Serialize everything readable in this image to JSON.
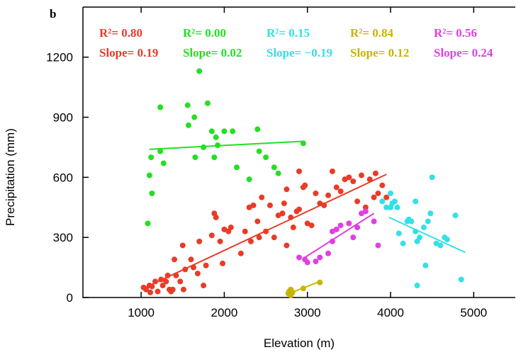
{
  "chart_data": {
    "type": "scatter",
    "panel_label": "b",
    "xlabel": "Elevation (m)",
    "ylabel": "Precipitation (mm)",
    "xlim": [
      300,
      5500
    ],
    "ylim": [
      0,
      1450
    ],
    "xticks": [
      1000,
      2000,
      3000,
      4000,
      5000
    ],
    "yticks": [
      0,
      300,
      600,
      900,
      1200
    ],
    "series": [
      {
        "color": "#e83c28",
        "annotation": [
          "R²= 0.80",
          "Slope= 0.19"
        ],
        "x": [
          1030,
          1060,
          1100,
          1110,
          1130,
          1170,
          1200,
          1240,
          1260,
          1300,
          1320,
          1340,
          1360,
          1380,
          1400,
          1420,
          1470,
          1500,
          1510,
          1530,
          1600,
          1630,
          1680,
          1700,
          1750,
          1780,
          1850,
          1880,
          1900,
          1950,
          1980,
          2000,
          2050,
          2080,
          2200,
          2250,
          2300,
          2320,
          2350,
          2400,
          2420,
          2450,
          2500,
          2550,
          2600,
          2650,
          2700,
          2720,
          2750,
          2750,
          2800,
          2830,
          2870,
          2900,
          2950,
          2970,
          3000,
          3050,
          3100,
          3150,
          3200,
          3250,
          3300,
          3350,
          3400,
          3450,
          3500,
          3550,
          3600,
          3650,
          3700,
          3750,
          3800,
          3850,
          3900,
          3950,
          3820,
          2900
        ],
        "values": [
          50,
          40,
          60,
          25,
          55,
          80,
          30,
          90,
          60,
          80,
          110,
          40,
          30,
          40,
          190,
          110,
          80,
          260,
          40,
          140,
          190,
          150,
          120,
          280,
          60,
          160,
          310,
          420,
          400,
          280,
          170,
          340,
          330,
          350,
          220,
          330,
          450,
          280,
          460,
          380,
          300,
          500,
          330,
          460,
          300,
          410,
          420,
          470,
          540,
          260,
          400,
          350,
          430,
          440,
          550,
          560,
          370,
          360,
          520,
          470,
          460,
          510,
          630,
          550,
          530,
          590,
          600,
          580,
          480,
          610,
          450,
          590,
          500,
          520,
          560,
          500,
          620,
          630
        ],
        "fit": {
          "x": [
            1050,
            3950
          ],
          "y": [
            50,
            615
          ]
        }
      },
      {
        "color": "#22e022",
        "annotation": [
          "R²= 0.00",
          "Slope= 0.02"
        ],
        "x": [
          1080,
          1100,
          1120,
          1130,
          1230,
          1230,
          1270,
          1560,
          1570,
          1640,
          1650,
          1700,
          1750,
          1800,
          1850,
          1880,
          1900,
          1920,
          2000,
          2100,
          2150,
          2300,
          2400,
          2420,
          2500,
          2600,
          2650,
          2950
        ],
        "values": [
          370,
          610,
          700,
          520,
          950,
          730,
          670,
          960,
          860,
          900,
          700,
          1130,
          750,
          970,
          830,
          700,
          800,
          760,
          830,
          830,
          650,
          590,
          840,
          730,
          700,
          650,
          620,
          770
        ],
        "fit": {
          "x": [
            1100,
            2950
          ],
          "y": [
            740,
            780
          ]
        }
      },
      {
        "color": "#33e0e8",
        "annotation": [
          "R²= 0.15",
          "Slope= −0.19"
        ],
        "x": [
          3950,
          4000,
          4020,
          4050,
          4080,
          4100,
          4150,
          4200,
          4220,
          4250,
          4300,
          4300,
          4320,
          4350,
          4400,
          4450,
          4480,
          4500,
          4550,
          4600,
          4650,
          4680,
          4780,
          4850,
          4320,
          4420,
          3900,
          4000
        ],
        "values": [
          450,
          520,
          470,
          480,
          450,
          320,
          270,
          380,
          390,
          380,
          480,
          330,
          280,
          300,
          350,
          380,
          420,
          600,
          270,
          260,
          300,
          290,
          410,
          90,
          60,
          160,
          480,
          450
        ],
        "fit": {
          "x": [
            3980,
            4900
          ],
          "y": [
            400,
            225
          ]
        }
      },
      {
        "color": "#c8b400",
        "annotation": [
          "R²= 0.84",
          "Slope= 0.12"
        ],
        "x": [
          2770,
          2780,
          2800,
          2800,
          2820,
          2950,
          3150,
          2790
        ],
        "values": [
          20,
          30,
          10,
          40,
          25,
          45,
          75,
          15
        ],
        "fit": {
          "x": [
            2780,
            3150
          ],
          "y": [
            20,
            80
          ]
        }
      },
      {
        "color": "#e040e0",
        "annotation": [
          "R²= 0.56",
          "Slope= 0.24"
        ],
        "x": [
          2970,
          3000,
          3100,
          3150,
          3250,
          3300,
          3350,
          3400,
          3500,
          3600,
          3650,
          3700,
          3800,
          3850,
          3550,
          3300,
          2900
        ],
        "values": [
          190,
          175,
          180,
          200,
          220,
          330,
          340,
          360,
          370,
          350,
          420,
          430,
          380,
          260,
          300,
          280,
          200
        ],
        "fit": {
          "x": [
            2950,
            3800
          ],
          "y": [
            195,
            420
          ]
        }
      }
    ]
  }
}
